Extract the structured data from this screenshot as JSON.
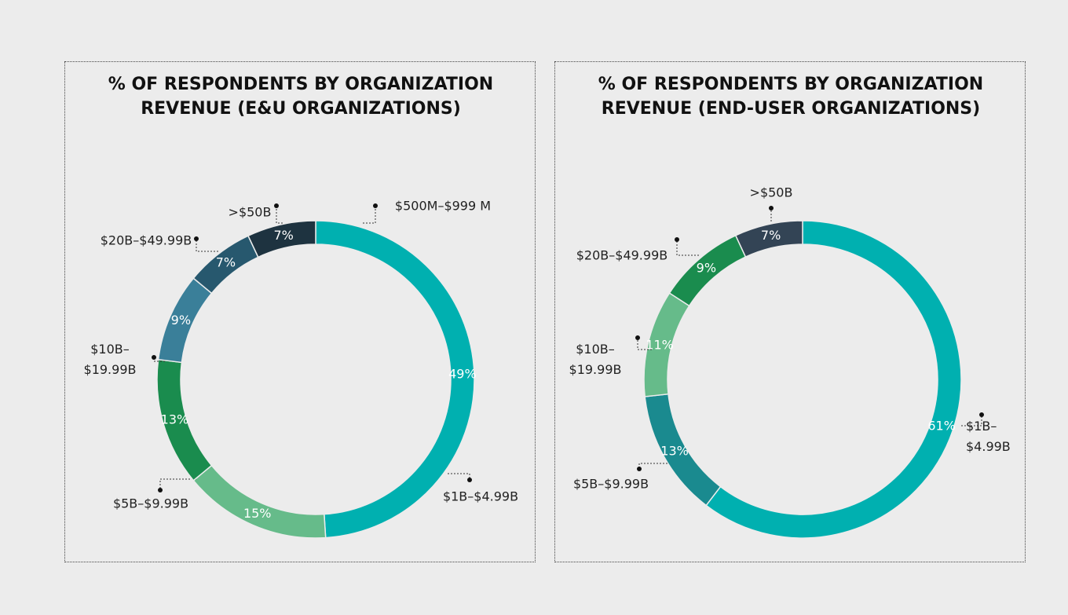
{
  "chart_data": [
    {
      "type": "donut",
      "title": "% OF RESPONDENTS BY ORGANIZATION REVENUE (E&U ORGANIZATIONS)",
      "categories": [
        "$1B–$4.99B",
        "$5B–$9.99B",
        "$10B–$19.99B",
        "$20B–$49.99B",
        ">$50B",
        "$500M–$999 M"
      ],
      "values": [
        49,
        15,
        13,
        9,
        7,
        7
      ],
      "value_labels": [
        "49%",
        "15%",
        "13%",
        "9%",
        "7%",
        "7%"
      ],
      "colors": [
        "#00b0b0",
        "#66bb8a",
        "#1a8c4e",
        "#3a7f99",
        "#27586e",
        "#1e3340"
      ]
    },
    {
      "type": "donut",
      "title": "% OF RESPONDENTS BY ORGANIZATION REVENUE (END-USER ORGANIZATIONS)",
      "categories": [
        "$1B–$4.99B",
        "$5B–$9.99B",
        "$10B–$19.99B",
        "$20B–$49.99B",
        ">$50B"
      ],
      "values": [
        61,
        13,
        11,
        9,
        7
      ],
      "value_labels": [
        "61%",
        "13%",
        "11%",
        "9%",
        "7%"
      ],
      "colors": [
        "#00b0b0",
        "#1a8a8f",
        "#66bb8a",
        "#1a8c4e",
        "#334455"
      ]
    }
  ]
}
